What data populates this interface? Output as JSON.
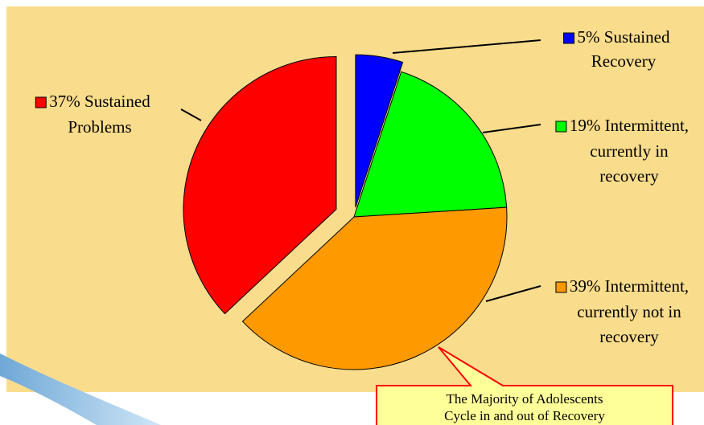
{
  "chart_data": {
    "type": "pie",
    "categories": [
      [
        "Sustained",
        "Recovery"
      ],
      [
        "Intermittent,",
        "currently in",
        "recovery"
      ],
      [
        "Intermittent,",
        "currently not in",
        "recovery"
      ],
      [
        "Sustained",
        "Problems"
      ]
    ],
    "values": [
      5,
      19,
      39,
      37
    ],
    "value_labels": [
      "5%",
      "19%",
      "39%",
      "37%"
    ],
    "colors": [
      "#0000ff",
      "#00ff00",
      "#ff9900",
      "#ff0000"
    ],
    "annotation": [
      "The Majority of Adolescents",
      "Cycle in and out of Recovery"
    ]
  }
}
